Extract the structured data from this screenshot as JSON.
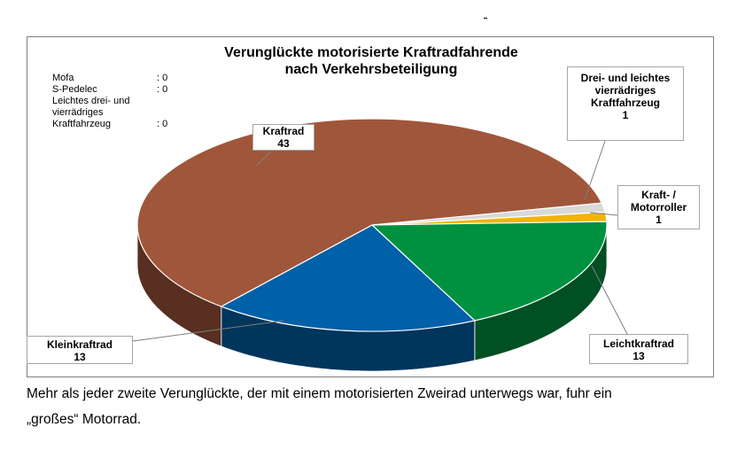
{
  "chart_data": {
    "type": "pie",
    "title": "Verunglückte motorisierte Kraftradfahrende",
    "subtitle": "nach Verkehrsbeteiligung",
    "slices": [
      {
        "label": "Kraftrad",
        "value": 43,
        "color": "#a0563b"
      },
      {
        "label": "Drei- und leichtes vierrädriges Kraftfahrzeug",
        "value": 1,
        "color": "#d9d9d9"
      },
      {
        "label": "Kraft- / Motorroller",
        "value": 1,
        "color": "#f2b400"
      },
      {
        "label": "Leichtkraftrad",
        "value": 13,
        "color": "#009140"
      },
      {
        "label": "Kleinkraftrad",
        "value": 13,
        "color": "#0060a8"
      }
    ],
    "zero_values": [
      {
        "label": "Mofa",
        "value": ": 0"
      },
      {
        "label": "S-Pedelec",
        "value": ": 0"
      },
      {
        "label": "Leichtes drei- und vierrädriges Kraftfahrzeug",
        "value": ": 0"
      }
    ],
    "callouts": {
      "kraftrad": {
        "label": "Kraftrad",
        "value": "43"
      },
      "drei": {
        "label": "Drei- und leichtes vierrädriges Kraftfahrzeug",
        "value": "1"
      },
      "roller": {
        "label": "Kraft- / Motorroller",
        "value": "1"
      },
      "leicht": {
        "label": "Leichtkraftrad",
        "value": "13"
      },
      "klein": {
        "label": "Kleinkraftrad",
        "value": "13"
      }
    }
  },
  "caption": {
    "line1": "Mehr als jeder zweite Verunglückte, der mit einem motorisierten Zweirad unterwegs war, fuhr ein",
    "line2": "„großes“ Motorrad."
  }
}
